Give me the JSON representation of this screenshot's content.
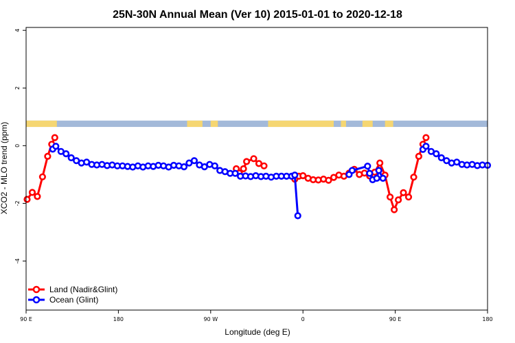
{
  "chart_data": {
    "type": "line",
    "title": "25N-30N Annual Mean (Ver 10)   2015-01-01 to 2020-12-18",
    "xlabel": "Longitude (deg E)",
    "ylabel": "XCO2 - MLO trend (ppm)",
    "x_ticks": [
      {
        "value": -90,
        "label": "90 E"
      },
      {
        "value": 0,
        "label": "180"
      },
      {
        "value": 90,
        "label": "90 W"
      },
      {
        "value": 180,
        "label": "0"
      },
      {
        "value": 270,
        "label": "90 E"
      },
      {
        "value": 360,
        "label": "180"
      }
    ],
    "xlim": [
      -90,
      360
    ],
    "ylim": [
      -5.7,
      4.1
    ],
    "y_ticks": [
      -4,
      -2,
      0,
      2,
      4
    ],
    "grid": false,
    "legend_position": "bottom-left",
    "land_sea_strip": {
      "y_bottom": 0.65,
      "y_top": 0.87,
      "ocean_color": "#a3b9d9",
      "land_color": "#f5d672",
      "land_segments": [
        [
          -90,
          -60
        ],
        [
          67,
          82
        ],
        [
          90,
          97
        ],
        [
          146,
          210
        ],
        [
          217,
          222
        ],
        [
          238,
          248
        ],
        [
          260,
          268
        ]
      ]
    },
    "series": [
      {
        "name": "Land (Nadir&Glint)",
        "color": "#ff0000",
        "points": [
          [
            [
              -89,
              -1.86
            ],
            [
              -84,
              -1.62
            ],
            [
              -79,
              -1.76
            ],
            [
              -74,
              -1.08
            ],
            [
              -69,
              -0.37
            ],
            [
              -65,
              0.05
            ],
            [
              -62,
              0.28
            ]
          ],
          [
            [
              115,
              -0.8
            ],
            [
              118,
              -0.95
            ],
            [
              122,
              -0.8
            ],
            [
              125,
              -0.55
            ],
            [
              132,
              -0.45
            ],
            [
              137,
              -0.62
            ],
            [
              142,
              -0.7
            ]
          ],
          [
            [
              172,
              -1.16
            ],
            [
              176,
              -1.06
            ],
            [
              180,
              -1.04
            ],
            [
              185,
              -1.13
            ],
            [
              190,
              -1.18
            ],
            [
              195,
              -1.19
            ],
            [
              200,
              -1.16
            ],
            [
              205,
              -1.2
            ],
            [
              210,
              -1.1
            ],
            [
              215,
              -1.02
            ],
            [
              220,
              -1.06
            ],
            [
              225,
              -0.95
            ],
            [
              230,
              -0.82
            ],
            [
              235,
              -1.0
            ],
            [
              240,
              -0.95
            ],
            [
              245,
              -1.05
            ],
            [
              250,
              -0.92
            ],
            [
              255,
              -0.6
            ],
            [
              260,
              -1.02
            ],
            [
              265,
              -1.78
            ],
            [
              269,
              -2.22
            ],
            [
              273,
              -1.88
            ],
            [
              278,
              -1.63
            ],
            [
              283,
              -1.78
            ],
            [
              288,
              -1.09
            ],
            [
              293,
              -0.37
            ],
            [
              297,
              0.05
            ],
            [
              300,
              0.28
            ]
          ]
        ]
      },
      {
        "name": "Ocean (Glint)",
        "color": "#0000ff",
        "points": [
          [
            [
              -64,
              -0.12
            ],
            [
              -61,
              -0.02
            ],
            [
              -56,
              -0.2
            ],
            [
              -51,
              -0.28
            ],
            [
              -46,
              -0.42
            ],
            [
              -41,
              -0.52
            ],
            [
              -36,
              -0.6
            ],
            [
              -31,
              -0.57
            ],
            [
              -26,
              -0.65
            ],
            [
              -21,
              -0.67
            ],
            [
              -16,
              -0.65
            ],
            [
              -11,
              -0.69
            ],
            [
              -6,
              -0.67
            ],
            [
              -1,
              -0.7
            ],
            [
              4,
              -0.7
            ],
            [
              9,
              -0.72
            ],
            [
              14,
              -0.74
            ],
            [
              19,
              -0.7
            ],
            [
              24,
              -0.74
            ],
            [
              29,
              -0.7
            ],
            [
              34,
              -0.72
            ],
            [
              39,
              -0.68
            ],
            [
              44,
              -0.7
            ],
            [
              49,
              -0.74
            ],
            [
              54,
              -0.68
            ],
            [
              59,
              -0.7
            ],
            [
              64,
              -0.73
            ],
            [
              69,
              -0.6
            ],
            [
              74,
              -0.52
            ],
            [
              79,
              -0.67
            ],
            [
              84,
              -0.73
            ],
            [
              89,
              -0.65
            ],
            [
              94,
              -0.7
            ],
            [
              99,
              -0.86
            ],
            [
              104,
              -0.9
            ],
            [
              109,
              -0.96
            ],
            [
              114,
              -0.96
            ],
            [
              119,
              -1.06
            ],
            [
              124,
              -1.05
            ],
            [
              129,
              -1.07
            ],
            [
              134,
              -1.04
            ],
            [
              139,
              -1.07
            ],
            [
              144,
              -1.06
            ],
            [
              149,
              -1.09
            ],
            [
              154,
              -1.06
            ],
            [
              159,
              -1.06
            ],
            [
              164,
              -1.06
            ],
            [
              169,
              -1.06
            ],
            [
              172,
              -1.02
            ],
            [
              175,
              -2.43
            ]
          ],
          [
            [
              225,
              -1.0
            ],
            [
              228,
              -0.86
            ],
            [
              243,
              -0.71
            ],
            [
              245,
              -0.96
            ],
            [
              248,
              -1.18
            ],
            [
              252,
              -1.13
            ],
            [
              254,
              -0.86
            ],
            [
              258,
              -1.13
            ]
          ],
          [
            [
              297,
              -0.13
            ],
            [
              300,
              -0.02
            ],
            [
              305,
              -0.2
            ],
            [
              310,
              -0.28
            ],
            [
              315,
              -0.42
            ],
            [
              320,
              -0.52
            ],
            [
              325,
              -0.6
            ],
            [
              330,
              -0.57
            ],
            [
              335,
              -0.65
            ],
            [
              340,
              -0.67
            ],
            [
              345,
              -0.65
            ],
            [
              350,
              -0.69
            ],
            [
              355,
              -0.67
            ],
            [
              360,
              -0.68
            ]
          ]
        ]
      }
    ]
  }
}
